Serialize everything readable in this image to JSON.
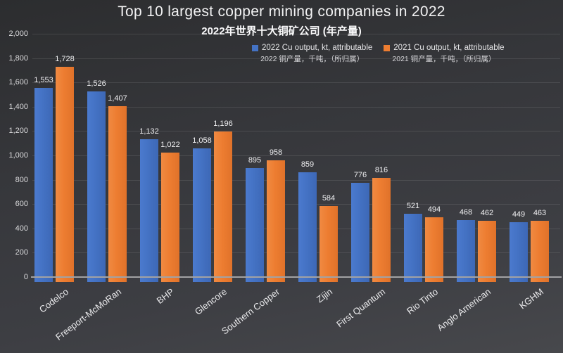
{
  "chart_data": {
    "type": "bar",
    "title": "Top 10 largest copper mining companies in 2022",
    "subtitle": "2022年世界十大铜矿公司 (年产量)",
    "categories": [
      "Codelco",
      "Freeport-McMoRan",
      "BHP",
      "Glencore",
      "Southern Copper",
      "Zijin",
      "First Quantum",
      "Rio Tinto",
      "Anglo American",
      "KGHM"
    ],
    "series": [
      {
        "name": "2022 Cu output, kt, attributable",
        "name_cn": "2022 铜产量，千吨，（所归属）",
        "color": "#4472C4",
        "values": [
          1553,
          1526,
          1132,
          1058,
          895,
          859,
          776,
          521,
          468,
          449
        ]
      },
      {
        "name": "2021 Cu output, kt, attributable",
        "name_cn": "2021 铜产量，千吨，（所归属）",
        "color": "#ED7D31",
        "values": [
          1728,
          1407,
          1022,
          1196,
          958,
          584,
          816,
          494,
          462,
          463
        ]
      }
    ],
    "ylim": [
      0,
      2000
    ],
    "ytick_step": 200,
    "grid": true,
    "legend_position": "top-right",
    "value_labels": true,
    "background": "#3a3b3f",
    "axis_color": "#a2a2a4"
  }
}
